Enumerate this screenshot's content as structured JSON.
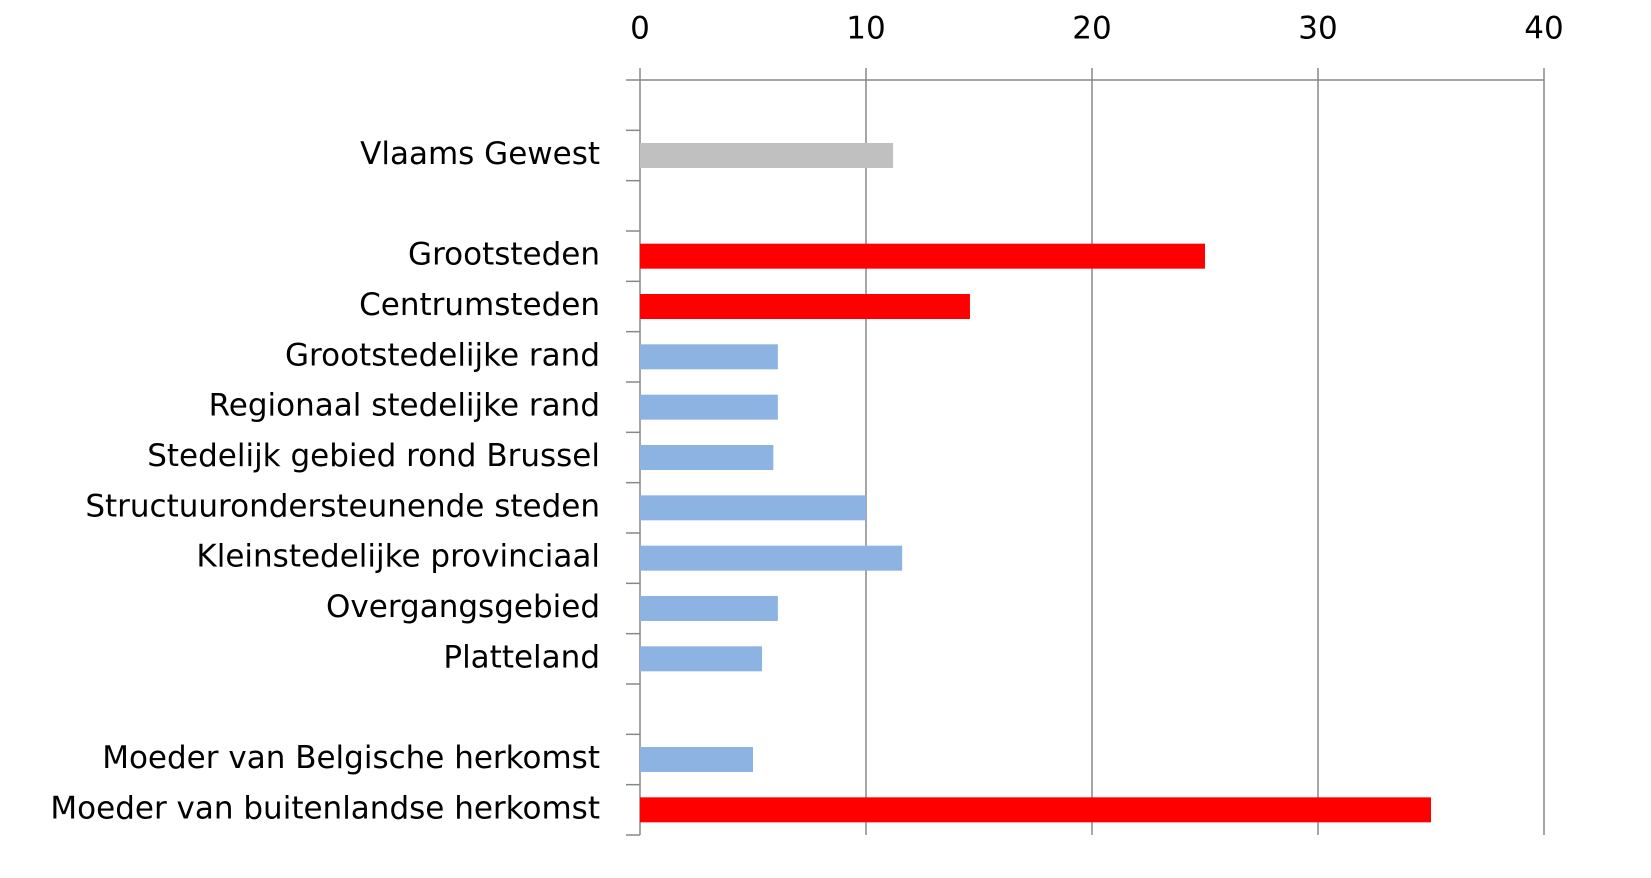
{
  "chart_data": {
    "type": "hbar",
    "categories": [
      null,
      "Vlaams Gewest",
      null,
      "Grootsteden",
      "Centrumsteden",
      "Grootstedelijke rand",
      "Regionaal stedelijke rand",
      "Stedelijk gebied rond Brussel",
      "Structuurondersteunende steden",
      "Kleinstedelijke provinciaal",
      "Overgangsgebied",
      "Platteland",
      null,
      "Moeder van Belgische herkomst",
      "Moeder van buitenlandse herkomst"
    ],
    "values": [
      null,
      11.2,
      null,
      25.0,
      14.6,
      6.1,
      6.1,
      5.9,
      10.0,
      11.6,
      6.1,
      5.4,
      null,
      5.0,
      35.0
    ],
    "colors": [
      null,
      "#c0c0c0",
      null,
      "#ff0000",
      "#ff0000",
      "#8db3e2",
      "#8db3e2",
      "#8db3e2",
      "#8db3e2",
      "#8db3e2",
      "#8db3e2",
      "#8db3e2",
      null,
      "#8db3e2",
      "#ff0000"
    ],
    "xlim": [
      0,
      40
    ],
    "xticks": [
      0,
      10,
      20,
      30,
      40
    ],
    "grid": true
  }
}
